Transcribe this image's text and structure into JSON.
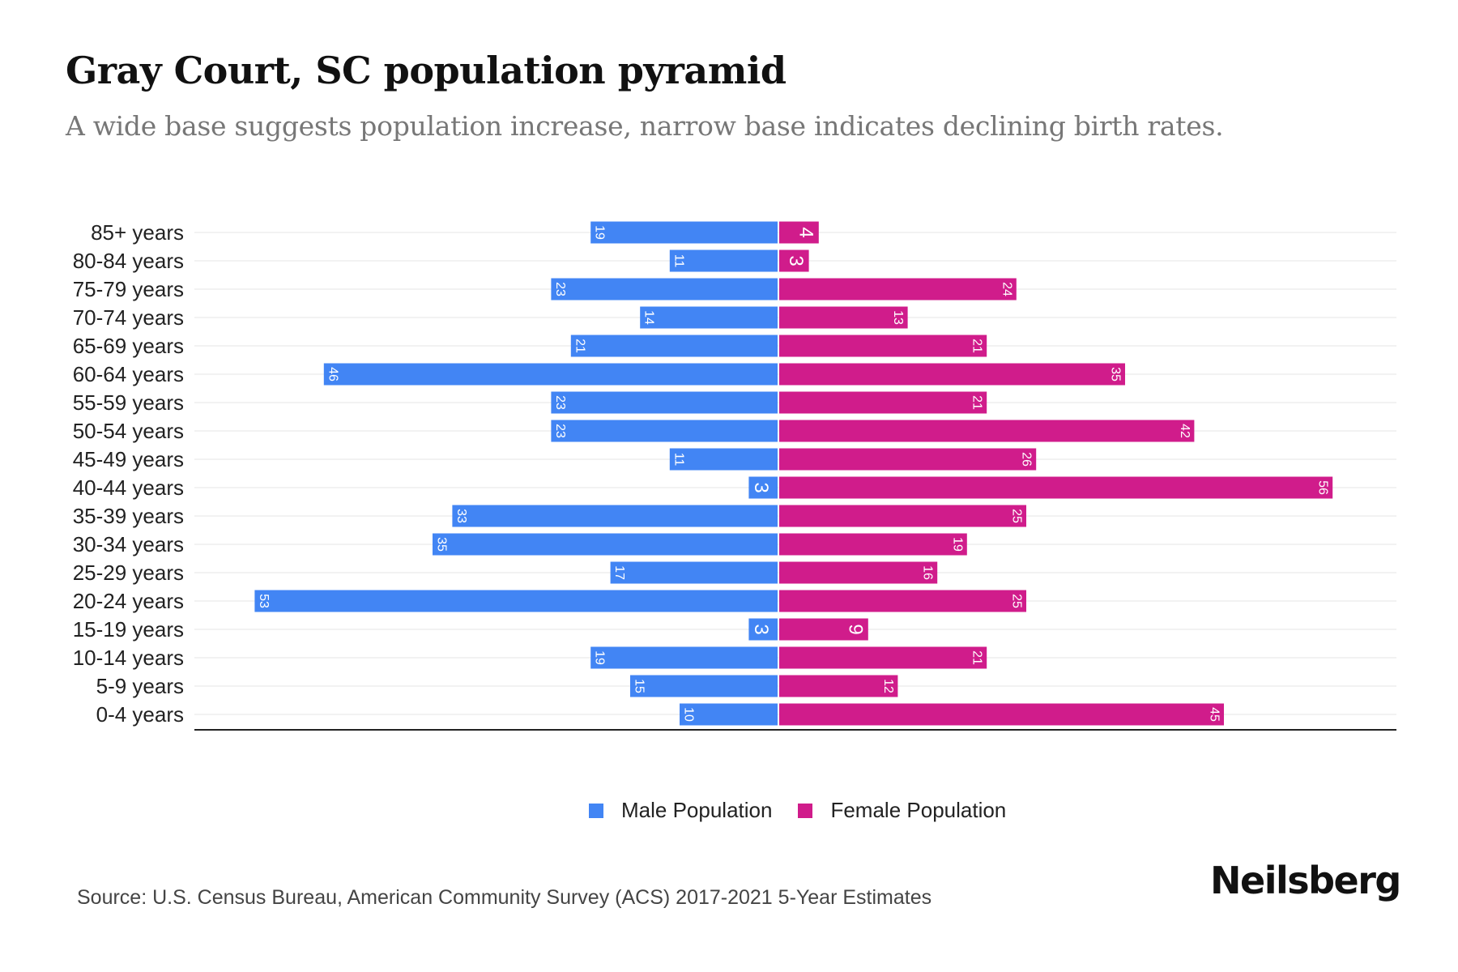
{
  "header": {
    "title": "Gray Court, SC population pyramid",
    "subtitle": "A wide base suggests population increase, narrow base indicates declining birth rates."
  },
  "colors": {
    "male": "#4285F4",
    "female": "#D01C8B",
    "grid": "#EEEEEE",
    "axis": "#222222"
  },
  "chart_data": {
    "type": "bar",
    "orientation": "horizontal-diverging",
    "title": "Gray Court, SC population pyramid",
    "subtitle": "A wide base suggests population increase, narrow base indicates declining birth rates.",
    "xlabel": "",
    "ylabel": "",
    "categories": [
      "85+ years",
      "80-84 years",
      "75-79 years",
      "70-74 years",
      "65-69 years",
      "60-64 years",
      "55-59 years",
      "50-54 years",
      "45-49 years",
      "40-44 years",
      "35-39 years",
      "30-34 years",
      "25-29 years",
      "20-24 years",
      "15-19 years",
      "10-14 years",
      "5-9 years",
      "0-4 years"
    ],
    "series": [
      {
        "name": "Male Population",
        "side": "left",
        "values": [
          19,
          11,
          23,
          14,
          21,
          46,
          23,
          23,
          11,
          3,
          33,
          35,
          17,
          53,
          3,
          19,
          15,
          10
        ]
      },
      {
        "name": "Female Population",
        "side": "right",
        "values": [
          4,
          3,
          24,
          13,
          21,
          35,
          21,
          42,
          26,
          56,
          25,
          19,
          16,
          25,
          9,
          21,
          12,
          45
        ]
      }
    ],
    "xlim": [
      -53,
      56
    ],
    "grid": true,
    "data_labels": true,
    "legend": "bottom-center"
  },
  "legend": {
    "items": [
      {
        "label": "Male Population",
        "color": "#4285F4"
      },
      {
        "label": "Female Population",
        "color": "#D01C8B"
      }
    ]
  },
  "footer": {
    "source": "Source: U.S. Census Bureau, American Community Survey (ACS) 2017-2021 5-Year Estimates",
    "brand": "Neilsberg"
  }
}
